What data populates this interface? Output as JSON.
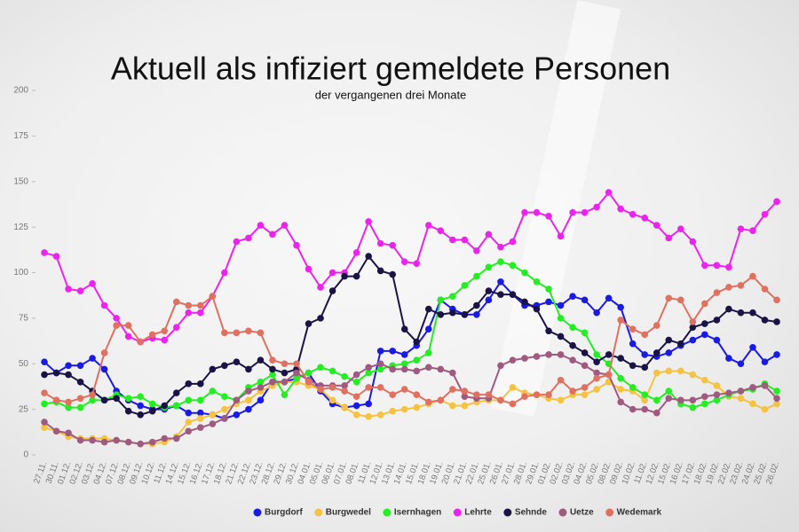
{
  "chart_data": {
    "type": "line",
    "title": "Aktuell als infiziert gemeldete Personen",
    "subtitle": "der vergangenen drei Monate",
    "categories": [
      "27.11.",
      "30.11.",
      "01.12.",
      "02.12.",
      "03.12.",
      "04.12.",
      "07.12.",
      "08.12.",
      "09.12.",
      "10.12.",
      "11.12.",
      "14.12.",
      "15.12.",
      "16.12.",
      "17.12.",
      "18.12.",
      "21.12.",
      "22.12.",
      "23.12.",
      "28.12.",
      "29.12.",
      "30.12.",
      "04.01.",
      "05.01.",
      "06.01.",
      "07.01.",
      "08.01.",
      "11.01.",
      "12.01.",
      "13.01.",
      "14.01.",
      "15.01.",
      "18.01.",
      "19.01.",
      "20.01.",
      "21.01.",
      "22.01.",
      "25.01.",
      "26.01.",
      "27.01.",
      "28.01.",
      "29.01.",
      "01.02.",
      "02.02.",
      "03.02.",
      "04.02.",
      "05.02.",
      "08.02.",
      "09.02.",
      "10.02.",
      "11.02.",
      "12.02.",
      "15.02.",
      "16.02.",
      "17.02.",
      "18.02.",
      "19.02.",
      "22.02.",
      "23.02.",
      "24.02.",
      "25.02.",
      "26.02."
    ],
    "series": [
      {
        "name": "Burgdorf",
        "color": "#1a1ae6",
        "values": [
          51,
          45,
          49,
          49,
          53,
          47,
          35,
          30,
          27,
          25,
          25,
          27,
          23,
          23,
          22,
          20,
          22,
          25,
          30,
          40,
          40,
          42,
          45,
          35,
          28,
          26,
          27,
          28,
          57,
          57,
          55,
          60,
          69,
          85,
          80,
          77,
          77,
          85,
          95,
          88,
          82,
          82,
          84,
          82,
          87,
          85,
          78,
          86,
          81,
          61,
          55,
          54,
          56,
          60,
          63,
          66,
          63,
          53,
          50,
          59,
          51,
          55
        ]
      },
      {
        "name": "Burgwedel",
        "color": "#f5c242",
        "values": [
          15,
          13,
          10,
          9,
          9,
          9,
          8,
          7,
          6,
          6,
          7,
          10,
          18,
          20,
          22,
          25,
          28,
          30,
          35,
          38,
          40,
          40,
          38,
          36,
          30,
          26,
          22,
          21,
          22,
          24,
          25,
          26,
          28,
          30,
          27,
          27,
          29,
          30,
          30,
          37,
          34,
          33,
          31,
          30,
          33,
          33,
          36,
          40,
          36,
          35,
          30,
          45,
          46,
          46,
          44,
          41,
          38,
          32,
          31,
          28,
          25,
          28
        ]
      },
      {
        "name": "Isernhagen",
        "color": "#22ee22",
        "values": [
          28,
          29,
          26,
          26,
          30,
          30,
          33,
          31,
          32,
          28,
          26,
          27,
          30,
          30,
          35,
          32,
          30,
          37,
          40,
          44,
          33,
          42,
          45,
          48,
          46,
          43,
          40,
          45,
          47,
          49,
          50,
          52,
          56,
          85,
          87,
          93,
          98,
          103,
          106,
          104,
          100,
          95,
          91,
          75,
          70,
          67,
          55,
          50,
          42,
          37,
          33,
          30,
          35,
          28,
          26,
          28,
          30,
          33,
          35,
          36,
          39,
          35
        ]
      },
      {
        "name": "Lehrte",
        "color": "#ee22ee",
        "values": [
          111,
          109,
          91,
          90,
          94,
          82,
          75,
          65,
          62,
          64,
          63,
          70,
          78,
          78,
          87,
          100,
          117,
          119,
          126,
          121,
          126,
          115,
          102,
          92,
          100,
          100,
          111,
          128,
          116,
          115,
          106,
          105,
          126,
          123,
          118,
          118,
          112,
          121,
          114,
          117,
          133,
          133,
          131,
          120,
          133,
          133,
          136,
          144,
          135,
          132,
          130,
          126,
          119,
          124,
          117,
          104,
          104,
          103,
          124,
          123,
          132,
          139
        ]
      },
      {
        "name": "Sehnde",
        "color": "#1a1446",
        "values": [
          44,
          45,
          44,
          40,
          35,
          30,
          31,
          24,
          22,
          24,
          27,
          34,
          39,
          39,
          47,
          49,
          51,
          47,
          52,
          47,
          45,
          47,
          72,
          75,
          90,
          98,
          98,
          109,
          101,
          99,
          69,
          62,
          80,
          77,
          78,
          77,
          82,
          90,
          88,
          88,
          84,
          80,
          68,
          65,
          60,
          56,
          51,
          55,
          53,
          49,
          48,
          56,
          63,
          61,
          70,
          72,
          74,
          80,
          78,
          78,
          74,
          73
        ]
      },
      {
        "name": "Uetze",
        "color": "#a05a80",
        "values": [
          18,
          13,
          12,
          8,
          8,
          7,
          8,
          7,
          6,
          7,
          9,
          9,
          13,
          15,
          17,
          20,
          30,
          35,
          37,
          40,
          40,
          45,
          41,
          38,
          38,
          38,
          44,
          48,
          50,
          47,
          47,
          46,
          48,
          47,
          45,
          32,
          31,
          31,
          49,
          52,
          53,
          54,
          55,
          55,
          52,
          49,
          45,
          44,
          29,
          25,
          25,
          23,
          31,
          30,
          30,
          32,
          33,
          34,
          35,
          37,
          38,
          31
        ]
      },
      {
        "name": "Wedemark",
        "color": "#e07060",
        "values": [
          34,
          30,
          29,
          31,
          33,
          56,
          71,
          71,
          62,
          66,
          68,
          84,
          82,
          82,
          87,
          67,
          67,
          68,
          67,
          52,
          50,
          50,
          40,
          36,
          37,
          35,
          32,
          37,
          37,
          33,
          36,
          33,
          29,
          30,
          36,
          35,
          33,
          33,
          30,
          28,
          32,
          33,
          33,
          41,
          35,
          37,
          42,
          44,
          74,
          69,
          66,
          71,
          86,
          85,
          73,
          83,
          89,
          92,
          93,
          98,
          91,
          85
        ]
      }
    ],
    "ylim": [
      0,
      200
    ],
    "yticks": [
      0,
      25,
      50,
      75,
      100,
      125,
      150,
      175,
      200
    ]
  }
}
